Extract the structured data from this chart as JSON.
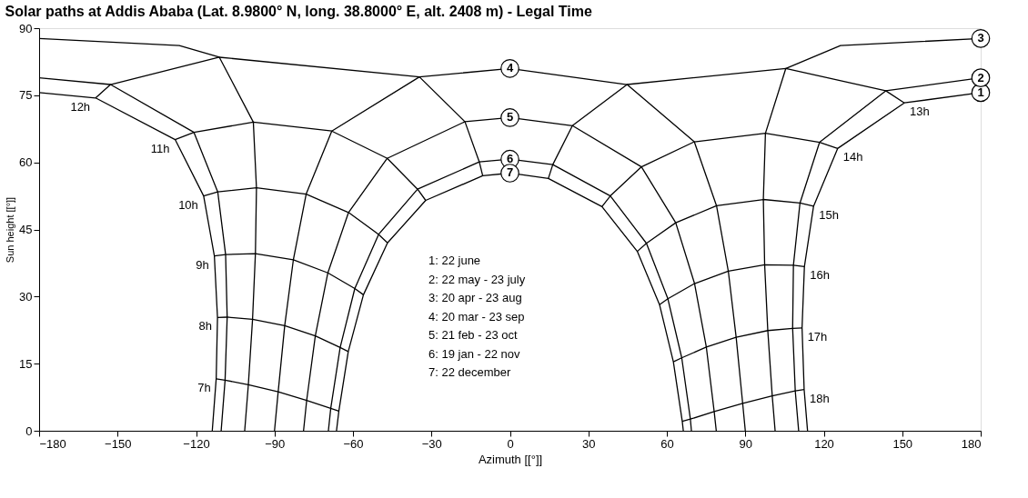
{
  "chart_data": {
    "type": "line",
    "title": "Solar paths at Addis Ababa (Lat. 8.9800° N, long. 38.8000° E, alt. 2408 m) - Legal Time",
    "xlabel": "Azimuth [[°]]",
    "ylabel": "Sun height [[°]]",
    "xlim": [
      -180,
      180
    ],
    "ylim": [
      0,
      90
    ],
    "xticks": [
      -180,
      -150,
      -120,
      -90,
      -60,
      -30,
      0,
      30,
      60,
      90,
      120,
      150,
      180
    ],
    "yticks": [
      0,
      15,
      30,
      45,
      60,
      75,
      90
    ],
    "grid": false,
    "line_style": "solid",
    "annotations": [
      "1: 22 june",
      "2: 22 may - 23 july",
      "3: 20 apr - 23 aug",
      "4: 20 mar - 23 sep",
      "5: 21 feb - 23 oct",
      "6: 19 jan - 22 nov",
      "7: 22 december"
    ],
    "series": [
      {
        "name": "1",
        "color": "#000000",
        "x": [
          -113.8,
          -112.3,
          -111.8,
          -113,
          -117.1,
          -128,
          -158.4,
          -180,
          0,
          180,
          150.8,
          125.3,
          116.1,
          112.6,
          111.7,
          112.5,
          113.8
        ],
        "values": [
          0,
          11.6,
          25.3,
          39.1,
          52.5,
          65.1,
          74.4,
          75.6,
          null,
          75.6,
          73.3,
          63.1,
          50.2,
          36.7,
          23,
          9.2,
          0
        ]
      },
      {
        "name": "2",
        "color": "#000000",
        "x": [
          -110.4,
          -108.9,
          -108.1,
          -108.7,
          -111.7,
          -120.8,
          -152.7,
          -180,
          0,
          180,
          143.7,
          118.4,
          110.9,
          108.4,
          108.1,
          109.1,
          110.4
        ],
        "values": [
          0,
          11.3,
          25.4,
          39.4,
          53.4,
          66.7,
          77.4,
          78.9,
          null,
          78.9,
          76,
          64.5,
          50.9,
          37,
          22.9,
          8.9,
          0
        ]
      },
      {
        "name": "3",
        "color": "#000000",
        "x": [
          -101.4,
          -100,
          -98.4,
          -97.3,
          -96.9,
          -98.1,
          -111.1,
          -126.4,
          -180,
          0,
          180,
          126.4,
          105.5,
          97.7,
          96.9,
          97.4,
          98.6,
          100.3,
          101.4
        ],
        "values": [
          0,
          10.3,
          24.9,
          39.6,
          54.3,
          69,
          83.5,
          86.1,
          87.7,
          null,
          87.7,
          86.1,
          81,
          66.5,
          51.7,
          37.1,
          22.4,
          7.8,
          0
        ]
      },
      {
        "name": "4",
        "color": "#000000",
        "x": [
          -90,
          -88.6,
          -86.1,
          -82.8,
          -77.9,
          -68.1,
          -34.6,
          0,
          44.8,
          70.5,
          79,
          83.5,
          86.5,
          89,
          90
        ],
        "values": [
          0,
          8.7,
          23.5,
          38.2,
          52.9,
          67,
          79.1,
          81,
          77.4,
          64.6,
          50.3,
          35.7,
          20.9,
          6.1,
          0
        ]
      },
      {
        "name": "5",
        "color": "#000000",
        "x": [
          -78.9,
          -77.7,
          -74.4,
          -69.6,
          -61.7,
          -46.9,
          -17.2,
          0,
          23.9,
          50.3,
          63.4,
          70.6,
          75.1,
          78.1,
          78.9
        ],
        "values": [
          0,
          6.8,
          21.2,
          35.3,
          48.8,
          60.9,
          69.1,
          70,
          68.2,
          59,
          46.5,
          32.9,
          18.7,
          4.3,
          0
        ]
      },
      {
        "name": "6",
        "color": "#000000",
        "x": [
          -69.4,
          -68.5,
          -64.9,
          -59.3,
          -50.2,
          -35.3,
          -11.7,
          0,
          16.4,
          38.4,
          52.2,
          60.4,
          65.7,
          69,
          69.4
        ],
        "values": [
          0,
          5,
          18.6,
          31.8,
          43.9,
          54,
          60.1,
          60.7,
          59.5,
          52.5,
          41.9,
          29.5,
          16.3,
          2.6,
          0
        ]
      },
      {
        "name": "7",
        "color": "#000000",
        "x": [
          -66.3,
          -65.4,
          -61.8,
          -56,
          -46.8,
          -32.2,
          -10.4,
          0,
          14.7,
          35.2,
          48.7,
          57.2,
          62.5,
          65.9,
          66.3
        ],
        "values": [
          0,
          4.4,
          17.7,
          30.4,
          42,
          51.5,
          57,
          57.6,
          56.4,
          50.1,
          40.1,
          28.2,
          15.4,
          2.1,
          0
        ]
      },
      {
        "name": "7h",
        "color": "#000000",
        "x": [
          -112.3,
          -108.9,
          -100,
          -88.6,
          -77.7,
          -68.5,
          -65.4
        ],
        "values": [
          11.6,
          11.3,
          10.3,
          8.7,
          6.8,
          5,
          4.4
        ]
      },
      {
        "name": "8h",
        "color": "#000000",
        "x": [
          -111.8,
          -108.1,
          -98.4,
          -86.1,
          -74.4,
          -64.9,
          -61.8
        ],
        "values": [
          25.3,
          25.4,
          24.9,
          23.5,
          21.2,
          18.6,
          17.7
        ]
      },
      {
        "name": "9h",
        "color": "#000000",
        "x": [
          -113,
          -108.7,
          -97.3,
          -82.8,
          -69.6,
          -59.3,
          -56
        ],
        "values": [
          39.1,
          39.4,
          39.6,
          38.2,
          35.3,
          31.8,
          30.4
        ]
      },
      {
        "name": "10h",
        "color": "#000000",
        "x": [
          -117.1,
          -111.7,
          -96.9,
          -77.9,
          -61.7,
          -50.2,
          -46.8
        ],
        "values": [
          52.5,
          53.4,
          54.3,
          52.9,
          48.8,
          43.9,
          42
        ]
      },
      {
        "name": "11h",
        "color": "#000000",
        "x": [
          -128,
          -120.8,
          -98.1,
          -68.1,
          -46.9,
          -35.3,
          -32.2
        ],
        "values": [
          65.1,
          66.7,
          69,
          67,
          60.9,
          54,
          51.5
        ]
      },
      {
        "name": "12h",
        "color": "#000000",
        "x": [
          -158.4,
          -152.7,
          -111.1,
          -34.6,
          -17.2,
          -11.7,
          -10.4
        ],
        "values": [
          74.4,
          77.4,
          83.5,
          79.1,
          69.1,
          60.1,
          57
        ]
      },
      {
        "name": "13h",
        "color": "#000000",
        "x": [
          150.8,
          143.7,
          105.5,
          44.8,
          23.9,
          16.4,
          14.7
        ],
        "values": [
          73.3,
          76,
          81,
          77.4,
          68.2,
          59.5,
          56.4
        ]
      },
      {
        "name": "14h",
        "color": "#000000",
        "x": [
          125.3,
          118.4,
          97.7,
          70.5,
          50.3,
          38.4,
          35.2
        ],
        "values": [
          63.1,
          64.5,
          66.5,
          64.6,
          59,
          52.5,
          50.1
        ]
      },
      {
        "name": "15h",
        "color": "#000000",
        "x": [
          116.1,
          110.9,
          96.9,
          79,
          63.4,
          52.2,
          48.7
        ],
        "values": [
          50.2,
          50.9,
          51.7,
          50.3,
          46.5,
          41.9,
          40.1
        ]
      },
      {
        "name": "16h",
        "color": "#000000",
        "x": [
          112.6,
          108.4,
          97.4,
          83.5,
          70.6,
          60.4,
          57.2
        ],
        "values": [
          36.7,
          37,
          37.1,
          35.7,
          32.9,
          29.5,
          28.2
        ]
      },
      {
        "name": "17h",
        "color": "#000000",
        "x": [
          111.7,
          108.1,
          98.6,
          86.5,
          75.1,
          65.7,
          62.5
        ],
        "values": [
          23,
          22.9,
          22.4,
          20.9,
          18.7,
          16.3,
          15.4
        ]
      },
      {
        "name": "18h",
        "color": "#000000",
        "x": [
          112.5,
          109.1,
          100.3,
          89,
          78.1,
          69,
          65.9
        ],
        "values": [
          9.2,
          8.9,
          7.8,
          6.1,
          4.3,
          2.6,
          2.1
        ]
      }
    ]
  }
}
